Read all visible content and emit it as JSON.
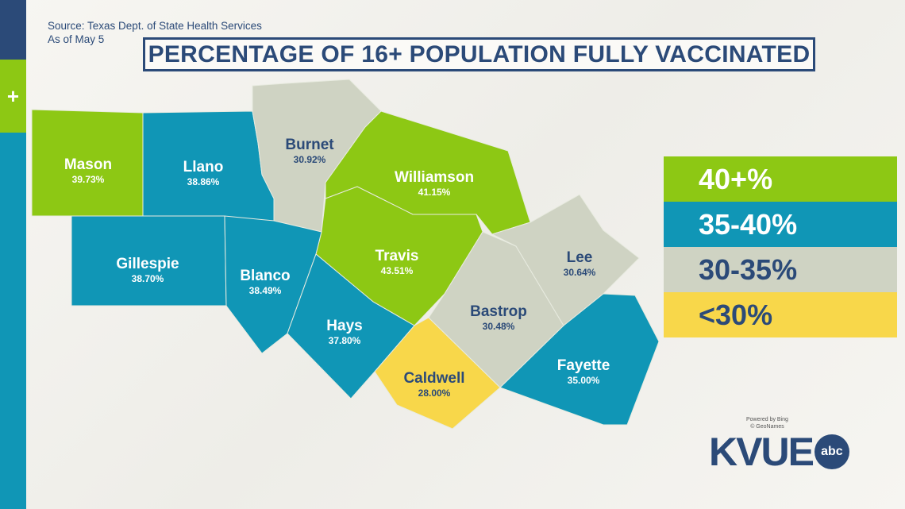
{
  "source": "Source: Texas Dept. of State Health Services",
  "as_of": "As of May 5",
  "title": "PERCENTAGE OF 16+ POPULATION FULLY VACCINATED",
  "sidebar_icon": "+",
  "colors": {
    "g40": "#8dc814",
    "g35": "#1096b6",
    "g30": "#cfd3c3",
    "lt30": "#f8d74a",
    "navy": "#2b4a78"
  },
  "counties": [
    {
      "name": "Mason",
      "value": "39.73%"
    },
    {
      "name": "Llano",
      "value": "38.86%"
    },
    {
      "name": "Burnet",
      "value": "30.92%"
    },
    {
      "name": "Williamson",
      "value": "41.15%"
    },
    {
      "name": "Travis",
      "value": "43.51%"
    },
    {
      "name": "Gillespie",
      "value": "38.70%"
    },
    {
      "name": "Blanco",
      "value": "38.49%"
    },
    {
      "name": "Hays",
      "value": "37.80%"
    },
    {
      "name": "Caldwell",
      "value": "28.00%"
    },
    {
      "name": "Bastrop",
      "value": "30.48%"
    },
    {
      "name": "Lee",
      "value": "30.64%"
    },
    {
      "name": "Fayette",
      "value": "35.00%"
    }
  ],
  "legend": [
    "40+%",
    "35-40%",
    "30-35%",
    "<30%"
  ],
  "credit": [
    "Powered by Bing",
    "© GeoNames"
  ],
  "logo": {
    "text": "KVUE",
    "badge": "abc"
  }
}
